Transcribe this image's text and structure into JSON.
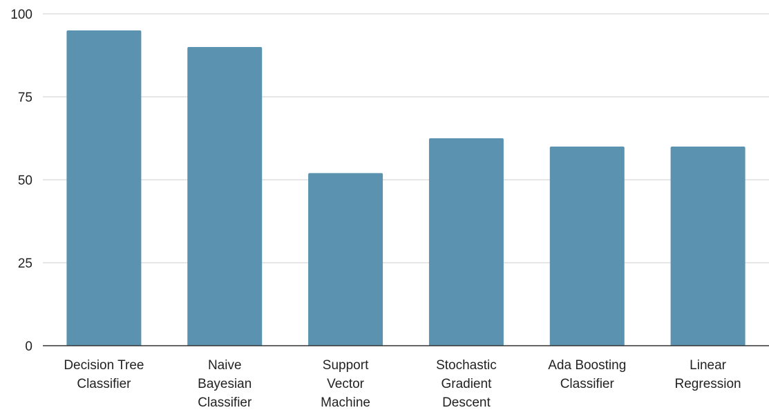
{
  "chart_data": {
    "type": "bar",
    "categories": [
      [
        "Decision Tree",
        "Classifier"
      ],
      [
        "Naive",
        "Bayesian",
        "Classifier"
      ],
      [
        "Support",
        "Vector",
        "Machine"
      ],
      [
        "Stochastic",
        "Gradient",
        "Descent"
      ],
      [
        "Ada Boosting",
        "Classifier"
      ],
      [
        "Linear",
        "Regression"
      ]
    ],
    "values": [
      95,
      90,
      52,
      62.5,
      60,
      60
    ],
    "ylim": [
      0,
      100
    ],
    "yticks": [
      0,
      25,
      50,
      75,
      100
    ],
    "grid": true,
    "bar_color": "#5a92b0",
    "title": "",
    "xlabel": "",
    "ylabel": ""
  }
}
